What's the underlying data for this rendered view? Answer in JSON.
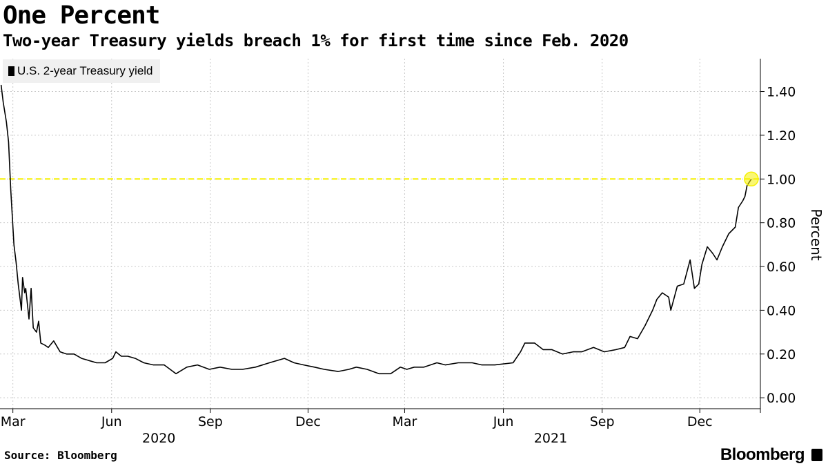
{
  "header": {
    "title": "One Percent",
    "subtitle": "Two-year Treasury yields breach 1% for first time since Feb. 2020"
  },
  "footer": {
    "source": "Source: Bloomberg",
    "brand": "Bloomberg"
  },
  "colors": {
    "line": "#000000",
    "highlight": "#f5f000",
    "grid": "#c8c8c8",
    "legend_bg": "#f0f0f0"
  },
  "chart_data": {
    "type": "line",
    "title": "One Percent",
    "subtitle": "Two-year Treasury yields breach 1% for first time since Feb. 2020",
    "ylabel": "Percent",
    "ylim": [
      -0.05,
      1.55
    ],
    "y_ticks": [
      0.0,
      0.2,
      0.4,
      0.6,
      0.8,
      1.0,
      1.2,
      1.4
    ],
    "y_tick_labels": [
      "0.00",
      "0.20",
      "0.40",
      "0.60",
      "0.80",
      "1.00",
      "1.20",
      "1.40"
    ],
    "y_axis_position": "right",
    "xlim": [
      "2020-02-18",
      "2022-01-20"
    ],
    "x_ticks": [
      {
        "date": "2020-03-01",
        "label": "Mar"
      },
      {
        "date": "2020-06-01",
        "label": "Jun"
      },
      {
        "date": "2020-09-01",
        "label": "Sep"
      },
      {
        "date": "2020-12-01",
        "label": "Dec"
      },
      {
        "date": "2021-03-01",
        "label": "Mar"
      },
      {
        "date": "2021-06-01",
        "label": "Jun"
      },
      {
        "date": "2021-09-01",
        "label": "Sep"
      },
      {
        "date": "2021-12-01",
        "label": "Dec"
      }
    ],
    "year_labels": [
      {
        "date": "2020-07-15",
        "label": "2020"
      },
      {
        "date": "2021-07-15",
        "label": "2021"
      }
    ],
    "grid": true,
    "legend_position": "top-left",
    "series": [
      {
        "name": "U.S. 2-year Treasury yield",
        "points": [
          [
            "2020-02-19",
            1.43
          ],
          [
            "2020-02-21",
            1.35
          ],
          [
            "2020-02-24",
            1.26
          ],
          [
            "2020-02-26",
            1.17
          ],
          [
            "2020-02-28",
            0.95
          ],
          [
            "2020-03-02",
            0.7
          ],
          [
            "2020-03-04",
            0.62
          ],
          [
            "2020-03-06",
            0.52
          ],
          [
            "2020-03-09",
            0.4
          ],
          [
            "2020-03-10",
            0.55
          ],
          [
            "2020-03-12",
            0.48
          ],
          [
            "2020-03-13",
            0.5
          ],
          [
            "2020-03-16",
            0.36
          ],
          [
            "2020-03-18",
            0.5
          ],
          [
            "2020-03-20",
            0.32
          ],
          [
            "2020-03-23",
            0.3
          ],
          [
            "2020-03-25",
            0.35
          ],
          [
            "2020-03-27",
            0.25
          ],
          [
            "2020-03-31",
            0.24
          ],
          [
            "2020-04-03",
            0.23
          ],
          [
            "2020-04-08",
            0.26
          ],
          [
            "2020-04-14",
            0.21
          ],
          [
            "2020-04-20",
            0.2
          ],
          [
            "2020-04-27",
            0.2
          ],
          [
            "2020-05-04",
            0.18
          ],
          [
            "2020-05-11",
            0.17
          ],
          [
            "2020-05-18",
            0.16
          ],
          [
            "2020-05-26",
            0.16
          ],
          [
            "2020-06-02",
            0.18
          ],
          [
            "2020-06-05",
            0.21
          ],
          [
            "2020-06-10",
            0.19
          ],
          [
            "2020-06-16",
            0.19
          ],
          [
            "2020-06-23",
            0.18
          ],
          [
            "2020-07-01",
            0.16
          ],
          [
            "2020-07-10",
            0.15
          ],
          [
            "2020-07-20",
            0.15
          ],
          [
            "2020-07-31",
            0.11
          ],
          [
            "2020-08-10",
            0.14
          ],
          [
            "2020-08-20",
            0.15
          ],
          [
            "2020-08-31",
            0.13
          ],
          [
            "2020-09-10",
            0.14
          ],
          [
            "2020-09-21",
            0.13
          ],
          [
            "2020-10-01",
            0.13
          ],
          [
            "2020-10-13",
            0.14
          ],
          [
            "2020-10-26",
            0.16
          ],
          [
            "2020-11-09",
            0.18
          ],
          [
            "2020-11-18",
            0.16
          ],
          [
            "2020-11-27",
            0.15
          ],
          [
            "2020-12-07",
            0.14
          ],
          [
            "2020-12-16",
            0.13
          ],
          [
            "2020-12-29",
            0.12
          ],
          [
            "2021-01-08",
            0.13
          ],
          [
            "2021-01-15",
            0.14
          ],
          [
            "2021-01-25",
            0.13
          ],
          [
            "2021-02-05",
            0.11
          ],
          [
            "2021-02-16",
            0.11
          ],
          [
            "2021-02-25",
            0.14
          ],
          [
            "2021-03-03",
            0.13
          ],
          [
            "2021-03-10",
            0.14
          ],
          [
            "2021-03-19",
            0.14
          ],
          [
            "2021-03-31",
            0.16
          ],
          [
            "2021-04-08",
            0.15
          ],
          [
            "2021-04-20",
            0.16
          ],
          [
            "2021-05-03",
            0.16
          ],
          [
            "2021-05-12",
            0.15
          ],
          [
            "2021-05-24",
            0.15
          ],
          [
            "2021-06-10",
            0.16
          ],
          [
            "2021-06-17",
            0.21
          ],
          [
            "2021-06-21",
            0.25
          ],
          [
            "2021-06-30",
            0.25
          ],
          [
            "2021-07-08",
            0.22
          ],
          [
            "2021-07-16",
            0.22
          ],
          [
            "2021-07-26",
            0.2
          ],
          [
            "2021-08-05",
            0.21
          ],
          [
            "2021-08-13",
            0.21
          ],
          [
            "2021-08-24",
            0.23
          ],
          [
            "2021-09-03",
            0.21
          ],
          [
            "2021-09-14",
            0.22
          ],
          [
            "2021-09-22",
            0.23
          ],
          [
            "2021-09-27",
            0.28
          ],
          [
            "2021-10-04",
            0.27
          ],
          [
            "2021-10-11",
            0.33
          ],
          [
            "2021-10-18",
            0.4
          ],
          [
            "2021-10-22",
            0.45
          ],
          [
            "2021-10-27",
            0.48
          ],
          [
            "2021-11-02",
            0.46
          ],
          [
            "2021-11-04",
            0.4
          ],
          [
            "2021-11-10",
            0.51
          ],
          [
            "2021-11-16",
            0.52
          ],
          [
            "2021-11-22",
            0.63
          ],
          [
            "2021-11-26",
            0.5
          ],
          [
            "2021-11-30",
            0.52
          ],
          [
            "2021-12-03",
            0.61
          ],
          [
            "2021-12-08",
            0.69
          ],
          [
            "2021-12-13",
            0.66
          ],
          [
            "2021-12-17",
            0.63
          ],
          [
            "2021-12-22",
            0.69
          ],
          [
            "2021-12-28",
            0.75
          ],
          [
            "2022-01-03",
            0.78
          ],
          [
            "2022-01-06",
            0.87
          ],
          [
            "2022-01-10",
            0.9
          ],
          [
            "2022-01-12",
            0.92
          ],
          [
            "2022-01-14",
            0.97
          ],
          [
            "2022-01-18",
            1.0
          ]
        ]
      }
    ],
    "annotations": [
      {
        "type": "horizontal-line",
        "y": 1.0,
        "style": "dashed",
        "color": "#f5f000"
      },
      {
        "type": "circle-marker",
        "date": "2022-01-18",
        "y": 1.0,
        "color": "#f5f000"
      }
    ]
  }
}
